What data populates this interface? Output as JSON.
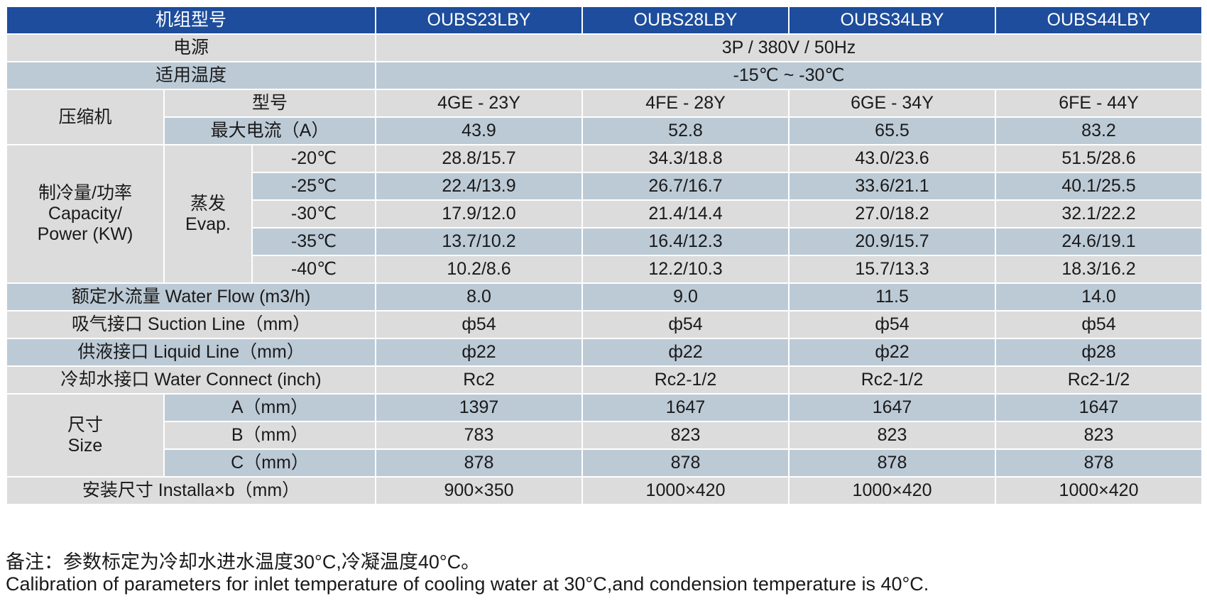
{
  "header": {
    "label": "机组型号",
    "models": [
      "OUBS23LBY",
      "OUBS28LBY",
      "OUBS34LBY",
      "OUBS44LBY"
    ]
  },
  "power_supply": {
    "label": "电源",
    "value": "3P / 380V / 50Hz"
  },
  "temp_range": {
    "label": "适用温度",
    "value": "-15℃ ~ -30℃"
  },
  "compressor": {
    "label": "压缩机",
    "model_label": "型号",
    "models": [
      "4GE - 23Y",
      "4FE - 28Y",
      "6GE - 34Y",
      "6FE - 44Y"
    ],
    "current_label": "最大电流（A）",
    "currents": [
      "43.9",
      "52.8",
      "65.5",
      "83.2"
    ]
  },
  "capacity": {
    "label_cn": "制冷量/功率",
    "label_en1": "Capacity/",
    "label_en2": "Power (KW)",
    "evap_cn": "蒸发",
    "evap_en": "Evap.",
    "rows": [
      {
        "temp": "-20℃",
        "values": [
          "28.8/15.7",
          "34.3/18.8",
          "43.0/23.6",
          "51.5/28.6"
        ]
      },
      {
        "temp": "-25℃",
        "values": [
          "22.4/13.9",
          "26.7/16.7",
          "33.6/21.1",
          "40.1/25.5"
        ]
      },
      {
        "temp": "-30℃",
        "values": [
          "17.9/12.0",
          "21.4/14.4",
          "27.0/18.2",
          "32.1/22.2"
        ]
      },
      {
        "temp": "-35℃",
        "values": [
          "13.7/10.2",
          "16.4/12.3",
          "20.9/15.7",
          "24.6/19.1"
        ]
      },
      {
        "temp": "-40℃",
        "values": [
          "10.2/8.6",
          "12.2/10.3",
          "15.7/13.3",
          "18.3/16.2"
        ]
      }
    ]
  },
  "water_flow": {
    "label": "额定水流量 Water Flow (m3/h)",
    "values": [
      "8.0",
      "9.0",
      "11.5",
      "14.0"
    ]
  },
  "suction": {
    "label": "吸气接口 Suction Line（mm）",
    "values": [
      "ф54",
      "ф54",
      "ф54",
      "ф54"
    ]
  },
  "liquid": {
    "label": "供液接口 Liquid Line（mm）",
    "values": [
      "ф22",
      "ф22",
      "ф22",
      "ф28"
    ]
  },
  "water_connect": {
    "label": "冷却水接口 Water Connect (inch)",
    "values": [
      "Rc2",
      "Rc2-1/2",
      "Rc2-1/2",
      "Rc2-1/2"
    ]
  },
  "size": {
    "label_cn": "尺寸",
    "label_en": "Size",
    "rows": [
      {
        "dim": "A（mm）",
        "values": [
          "1397",
          "1647",
          "1647",
          "1647"
        ]
      },
      {
        "dim": "B（mm）",
        "values": [
          "783",
          "823",
          "823",
          "823"
        ]
      },
      {
        "dim": "C（mm）",
        "values": [
          "878",
          "878",
          "878",
          "878"
        ]
      }
    ]
  },
  "install": {
    "label": "安装尺寸  Installa×b（mm）",
    "values": [
      "900×350",
      "1000×420",
      "1000×420",
      "1000×420"
    ]
  },
  "notes": {
    "cn": "备注：参数标定为冷却水进水温度30°C,冷凝温度40°C。",
    "en": "Calibration of parameters for inlet temperature of cooling water at 30°C,and condension temperature is 40°C."
  }
}
